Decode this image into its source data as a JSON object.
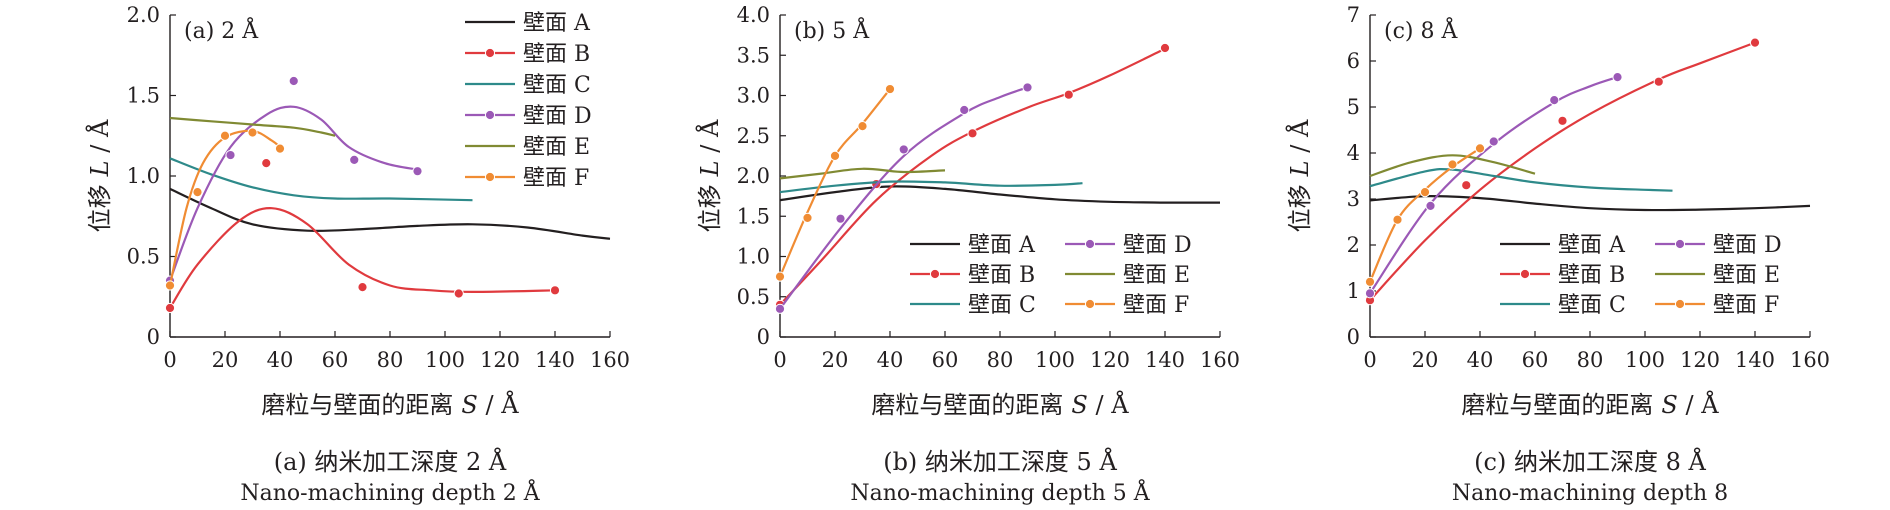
{
  "colors": {
    "A": "#231f20",
    "B": "#e03a3e",
    "C": "#2e8a8a",
    "D": "#9b59b6",
    "E": "#808a33",
    "F": "#f08c33"
  },
  "chart_data": [
    {
      "type": "line",
      "panel_label": "(a) 2 Å",
      "xlabel_prefix": "磨粒与壁面的距离",
      "xlabel_var": "S",
      "xlabel_unit": " / Å",
      "ylabel_prefix": "位移",
      "ylabel_var": "L",
      "ylabel_unit": " / Å",
      "xlim": [
        0,
        160
      ],
      "ylim": [
        0,
        2.0
      ],
      "xticks": [
        0,
        20,
        40,
        60,
        80,
        100,
        120,
        140,
        160
      ],
      "yticks": [
        "0",
        "0.5",
        "1.0",
        "1.5",
        "2.0"
      ],
      "ytick_values": [
        0,
        0.5,
        1.0,
        1.5,
        2.0
      ],
      "legend_layout": "column",
      "caption_cn": "(a) 纳米加工深度 2 Å",
      "caption_en": "Nano-machining depth 2 Å",
      "series": [
        {
          "name": "壁面 A",
          "key": "A",
          "markers": false,
          "curve": [
            [
              0,
              0.92
            ],
            [
              15,
              0.8
            ],
            [
              30,
              0.7
            ],
            [
              50,
              0.66
            ],
            [
              70,
              0.67
            ],
            [
              90,
              0.69
            ],
            [
              110,
              0.7
            ],
            [
              130,
              0.68
            ],
            [
              150,
              0.63
            ],
            [
              160,
              0.61
            ]
          ],
          "points": []
        },
        {
          "name": "壁面 B",
          "key": "B",
          "markers": true,
          "curve": [
            [
              0,
              0.18
            ],
            [
              10,
              0.45
            ],
            [
              25,
              0.72
            ],
            [
              37,
              0.8
            ],
            [
              50,
              0.7
            ],
            [
              65,
              0.45
            ],
            [
              80,
              0.32
            ],
            [
              95,
              0.29
            ],
            [
              110,
              0.28
            ],
            [
              140,
              0.29
            ]
          ],
          "points": [
            [
              0,
              0.18
            ],
            [
              35,
              1.08
            ],
            [
              70,
              0.31
            ],
            [
              105,
              0.27
            ],
            [
              140,
              0.29
            ]
          ]
        },
        {
          "name": "壁面 C",
          "key": "C",
          "markers": false,
          "curve": [
            [
              0,
              1.11
            ],
            [
              15,
              1.01
            ],
            [
              30,
              0.93
            ],
            [
              45,
              0.88
            ],
            [
              60,
              0.86
            ],
            [
              80,
              0.86
            ],
            [
              110,
              0.85
            ]
          ],
          "points": []
        },
        {
          "name": "壁面 D",
          "key": "D",
          "markers": true,
          "curve": [
            [
              0,
              0.35
            ],
            [
              10,
              0.8
            ],
            [
              22,
              1.18
            ],
            [
              35,
              1.38
            ],
            [
              45,
              1.43
            ],
            [
              55,
              1.35
            ],
            [
              65,
              1.18
            ],
            [
              78,
              1.08
            ],
            [
              90,
              1.04
            ]
          ],
          "points": [
            [
              0,
              0.35
            ],
            [
              22,
              1.13
            ],
            [
              45,
              1.59
            ],
            [
              67,
              1.1
            ],
            [
              90,
              1.03
            ]
          ]
        },
        {
          "name": "壁面 E",
          "key": "E",
          "markers": false,
          "curve": [
            [
              0,
              1.36
            ],
            [
              15,
              1.34
            ],
            [
              30,
              1.32
            ],
            [
              45,
              1.3
            ],
            [
              55,
              1.27
            ],
            [
              60,
              1.25
            ]
          ],
          "points": []
        },
        {
          "name": "壁面 F",
          "key": "F",
          "markers": true,
          "curve": [
            [
              0,
              0.32
            ],
            [
              6,
              0.8
            ],
            [
              12,
              1.08
            ],
            [
              20,
              1.24
            ],
            [
              30,
              1.28
            ],
            [
              37,
              1.22
            ],
            [
              40,
              1.18
            ]
          ],
          "points": [
            [
              0,
              0.32
            ],
            [
              10,
              0.9
            ],
            [
              20,
              1.25
            ],
            [
              30,
              1.27
            ],
            [
              40,
              1.17
            ]
          ]
        }
      ]
    },
    {
      "type": "line",
      "panel_label": "(b) 5 Å",
      "xlabel_prefix": "磨粒与壁面的距离",
      "xlabel_var": "S",
      "xlabel_unit": " / Å",
      "ylabel_prefix": "位移",
      "ylabel_var": "L",
      "ylabel_unit": " / Å",
      "xlim": [
        0,
        160
      ],
      "ylim": [
        0,
        4.0
      ],
      "xticks": [
        0,
        20,
        40,
        60,
        80,
        100,
        120,
        140,
        160
      ],
      "yticks": [
        "0",
        "0.5",
        "1.0",
        "1.5",
        "2.0",
        "2.5",
        "3.0",
        "3.5",
        "4.0"
      ],
      "ytick_values": [
        0,
        0.5,
        1.0,
        1.5,
        2.0,
        2.5,
        3.0,
        3.5,
        4.0
      ],
      "legend_layout": "grid",
      "caption_cn": "(b) 纳米加工深度 5 Å",
      "caption_en": "Nano-machining depth 5 Å",
      "series": [
        {
          "name": "壁面 A",
          "key": "A",
          "markers": false,
          "curve": [
            [
              0,
              1.7
            ],
            [
              20,
              1.8
            ],
            [
              40,
              1.87
            ],
            [
              60,
              1.84
            ],
            [
              80,
              1.77
            ],
            [
              100,
              1.71
            ],
            [
              120,
              1.68
            ],
            [
              140,
              1.67
            ],
            [
              160,
              1.67
            ]
          ],
          "points": []
        },
        {
          "name": "壁面 B",
          "key": "B",
          "markers": true,
          "curve": [
            [
              0,
              0.4
            ],
            [
              15,
              0.95
            ],
            [
              35,
              1.7
            ],
            [
              55,
              2.25
            ],
            [
              70,
              2.55
            ],
            [
              90,
              2.85
            ],
            [
              105,
              3.03
            ],
            [
              120,
              3.25
            ],
            [
              140,
              3.58
            ]
          ],
          "points": [
            [
              0,
              0.4
            ],
            [
              35,
              1.9
            ],
            [
              70,
              2.53
            ],
            [
              105,
              3.01
            ],
            [
              140,
              3.59
            ]
          ]
        },
        {
          "name": "壁面 C",
          "key": "C",
          "markers": false,
          "curve": [
            [
              0,
              1.8
            ],
            [
              20,
              1.88
            ],
            [
              40,
              1.93
            ],
            [
              60,
              1.92
            ],
            [
              80,
              1.88
            ],
            [
              100,
              1.89
            ],
            [
              110,
              1.91
            ]
          ],
          "points": []
        },
        {
          "name": "壁面 D",
          "key": "D",
          "markers": true,
          "curve": [
            [
              0,
              0.35
            ],
            [
              22,
              1.35
            ],
            [
              45,
              2.25
            ],
            [
              67,
              2.78
            ],
            [
              80,
              2.98
            ],
            [
              90,
              3.1
            ]
          ],
          "points": [
            [
              0,
              0.35
            ],
            [
              22,
              1.47
            ],
            [
              45,
              2.33
            ],
            [
              67,
              2.82
            ],
            [
              90,
              3.1
            ]
          ]
        },
        {
          "name": "壁面 E",
          "key": "E",
          "markers": false,
          "curve": [
            [
              0,
              1.97
            ],
            [
              15,
              2.03
            ],
            [
              30,
              2.09
            ],
            [
              45,
              2.05
            ],
            [
              60,
              2.07
            ]
          ],
          "points": []
        },
        {
          "name": "壁面 F",
          "key": "F",
          "markers": true,
          "curve": [
            [
              0,
              0.75
            ],
            [
              10,
              1.55
            ],
            [
              20,
              2.25
            ],
            [
              30,
              2.65
            ],
            [
              40,
              3.08
            ]
          ],
          "points": [
            [
              0,
              0.75
            ],
            [
              10,
              1.48
            ],
            [
              20,
              2.25
            ],
            [
              30,
              2.62
            ],
            [
              40,
              3.08
            ]
          ]
        }
      ]
    },
    {
      "type": "line",
      "panel_label": "(c) 8 Å",
      "xlabel_prefix": "磨粒与壁面的距离",
      "xlabel_var": "S",
      "xlabel_unit": " / Å",
      "ylabel_prefix": "位移",
      "ylabel_var": "L",
      "ylabel_unit": " / Å",
      "xlim": [
        0,
        160
      ],
      "ylim": [
        0,
        7
      ],
      "xticks": [
        0,
        20,
        40,
        60,
        80,
        100,
        120,
        140,
        160
      ],
      "yticks": [
        "0",
        "1",
        "2",
        "3",
        "4",
        "5",
        "6",
        "7"
      ],
      "ytick_values": [
        0,
        1,
        2,
        3,
        4,
        5,
        6,
        7
      ],
      "legend_layout": "grid",
      "caption_cn": "(c) 纳米加工深度 8 Å",
      "caption_en": "Nano-machining depth 8",
      "series": [
        {
          "name": "壁面 A",
          "key": "A",
          "markers": false,
          "curve": [
            [
              0,
              2.97
            ],
            [
              20,
              3.06
            ],
            [
              40,
              3.02
            ],
            [
              60,
              2.9
            ],
            [
              80,
              2.8
            ],
            [
              100,
              2.76
            ],
            [
              120,
              2.77
            ],
            [
              140,
              2.8
            ],
            [
              160,
              2.85
            ]
          ],
          "points": []
        },
        {
          "name": "壁面 B",
          "key": "B",
          "markers": true,
          "curve": [
            [
              0,
              0.8
            ],
            [
              20,
              2.1
            ],
            [
              40,
              3.2
            ],
            [
              60,
              4.1
            ],
            [
              80,
              4.85
            ],
            [
              105,
              5.6
            ],
            [
              120,
              5.95
            ],
            [
              140,
              6.4
            ]
          ],
          "points": [
            [
              0,
              0.8
            ],
            [
              35,
              3.3
            ],
            [
              70,
              4.7
            ],
            [
              105,
              5.55
            ],
            [
              140,
              6.4
            ]
          ]
        },
        {
          "name": "壁面 C",
          "key": "C",
          "markers": false,
          "curve": [
            [
              0,
              3.28
            ],
            [
              20,
              3.6
            ],
            [
              30,
              3.64
            ],
            [
              45,
              3.5
            ],
            [
              60,
              3.36
            ],
            [
              80,
              3.25
            ],
            [
              100,
              3.2
            ],
            [
              110,
              3.18
            ]
          ],
          "points": []
        },
        {
          "name": "壁面 D",
          "key": "D",
          "markers": true,
          "curve": [
            [
              0,
              0.95
            ],
            [
              22,
              2.9
            ],
            [
              45,
              4.2
            ],
            [
              67,
              5.1
            ],
            [
              80,
              5.45
            ],
            [
              90,
              5.65
            ]
          ],
          "points": [
            [
              0,
              0.95
            ],
            [
              22,
              2.85
            ],
            [
              45,
              4.25
            ],
            [
              67,
              5.15
            ],
            [
              90,
              5.65
            ]
          ]
        },
        {
          "name": "壁面 E",
          "key": "E",
          "markers": false,
          "curve": [
            [
              0,
              3.5
            ],
            [
              15,
              3.8
            ],
            [
              30,
              3.95
            ],
            [
              45,
              3.8
            ],
            [
              60,
              3.55
            ]
          ],
          "points": []
        },
        {
          "name": "壁面 F",
          "key": "F",
          "markers": true,
          "curve": [
            [
              0,
              1.2
            ],
            [
              10,
              2.55
            ],
            [
              20,
              3.2
            ],
            [
              30,
              3.7
            ],
            [
              40,
              4.1
            ]
          ],
          "points": [
            [
              0,
              1.2
            ],
            [
              10,
              2.55
            ],
            [
              20,
              3.15
            ],
            [
              30,
              3.75
            ],
            [
              40,
              4.1
            ]
          ]
        }
      ]
    }
  ]
}
